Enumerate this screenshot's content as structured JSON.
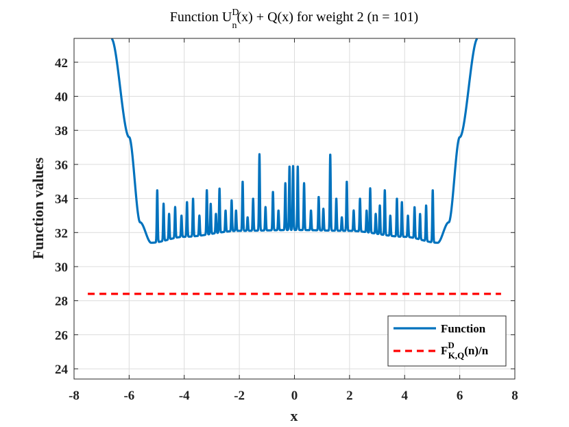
{
  "chart_data": {
    "type": "line",
    "title": {
      "prefix": "Function U",
      "superscript": "D",
      "subscript": "n",
      "suffix": "(x) + Q(x) for weight 2  (n = 101)"
    },
    "xlabel": "x",
    "ylabel": "Function values",
    "xlim": [
      -8,
      8
    ],
    "ylim": [
      23.4,
      43.4
    ],
    "xticks": [
      "-8",
      "-6",
      "-4",
      "-2",
      "0",
      "2",
      "4",
      "6",
      "8"
    ],
    "yticks": [
      "24",
      "26",
      "28",
      "30",
      "32",
      "34",
      "36",
      "38",
      "40",
      "42"
    ],
    "grid": true,
    "legend_position": "bottom-right",
    "series": [
      {
        "name": "Function",
        "style": "solid",
        "color": "#0072BD",
        "description": "oscillating curve with upward spikes, rising steeply beyond |x| > 5.5",
        "envelope_points": [
          {
            "x": -6.65,
            "y": 43.4
          },
          {
            "x": -6.0,
            "y": 37.6
          },
          {
            "x": -5.6,
            "y": 32.6
          },
          {
            "x": -5.2,
            "y": 31.4
          },
          {
            "x": -4.0,
            "y": 31.75
          },
          {
            "x": -2.0,
            "y": 32.1
          },
          {
            "x": 0.0,
            "y": 32.15
          },
          {
            "x": 2.0,
            "y": 32.1
          },
          {
            "x": 4.0,
            "y": 31.75
          },
          {
            "x": 5.2,
            "y": 31.4
          },
          {
            "x": 5.6,
            "y": 32.6
          },
          {
            "x": 6.0,
            "y": 37.6
          },
          {
            "x": 6.65,
            "y": 43.4
          }
        ],
        "spike_peaks": [
          {
            "x": -4.98,
            "y": 34.5
          },
          {
            "x": -4.75,
            "y": 33.7
          },
          {
            "x": -4.55,
            "y": 33.1
          },
          {
            "x": -4.33,
            "y": 33.5
          },
          {
            "x": -4.1,
            "y": 33.0
          },
          {
            "x": -3.9,
            "y": 33.8
          },
          {
            "x": -3.68,
            "y": 34.0
          },
          {
            "x": -3.45,
            "y": 33.0
          },
          {
            "x": -3.18,
            "y": 34.5
          },
          {
            "x": -3.04,
            "y": 33.7
          },
          {
            "x": -2.85,
            "y": 33.1
          },
          {
            "x": -2.72,
            "y": 34.6
          },
          {
            "x": -2.5,
            "y": 33.3
          },
          {
            "x": -2.28,
            "y": 33.9
          },
          {
            "x": -2.12,
            "y": 33.3
          },
          {
            "x": -1.88,
            "y": 35.0
          },
          {
            "x": -1.7,
            "y": 32.9
          },
          {
            "x": -1.5,
            "y": 34.0
          },
          {
            "x": -1.27,
            "y": 36.6
          },
          {
            "x": -1.05,
            "y": 33.5
          },
          {
            "x": -0.78,
            "y": 34.4
          },
          {
            "x": -0.58,
            "y": 33.3
          },
          {
            "x": -0.33,
            "y": 34.9
          },
          {
            "x": -0.18,
            "y": 35.9
          },
          {
            "x": -0.05,
            "y": 35.9
          },
          {
            "x": 0.12,
            "y": 35.9
          },
          {
            "x": 0.35,
            "y": 34.9
          },
          {
            "x": 0.6,
            "y": 33.3
          },
          {
            "x": 0.88,
            "y": 34.1
          },
          {
            "x": 1.05,
            "y": 33.4
          },
          {
            "x": 1.3,
            "y": 36.6
          },
          {
            "x": 1.52,
            "y": 34.0
          },
          {
            "x": 1.72,
            "y": 32.9
          },
          {
            "x": 1.9,
            "y": 35.0
          },
          {
            "x": 2.15,
            "y": 33.3
          },
          {
            "x": 2.38,
            "y": 34.0
          },
          {
            "x": 2.62,
            "y": 33.3
          },
          {
            "x": 2.75,
            "y": 34.6
          },
          {
            "x": 2.95,
            "y": 33.1
          },
          {
            "x": 3.1,
            "y": 33.6
          },
          {
            "x": 3.28,
            "y": 34.5
          },
          {
            "x": 3.48,
            "y": 33.0
          },
          {
            "x": 3.72,
            "y": 34.0
          },
          {
            "x": 3.9,
            "y": 33.8
          },
          {
            "x": 4.12,
            "y": 33.0
          },
          {
            "x": 4.36,
            "y": 33.5
          },
          {
            "x": 4.56,
            "y": 33.1
          },
          {
            "x": 4.78,
            "y": 33.6
          },
          {
            "x": 5.02,
            "y": 34.5
          }
        ]
      },
      {
        "name": "F_{K,Q}^D(n)/n",
        "style": "dashed",
        "color": "#FF0000",
        "x": [
          -7.5,
          7.5
        ],
        "y": [
          28.4,
          28.4
        ]
      }
    ],
    "legend": [
      {
        "label": "Function"
      },
      {
        "label_main": "F",
        "label_sup": "D",
        "label_sub": "K,Q",
        "label_suffix": "(n)/n"
      }
    ]
  }
}
